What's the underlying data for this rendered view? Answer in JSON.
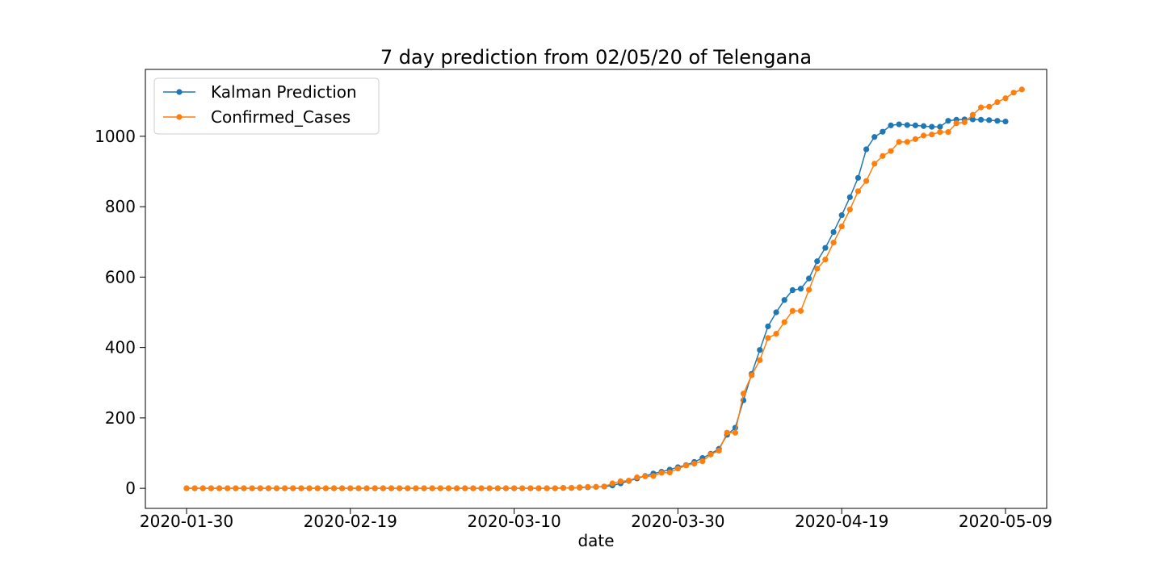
{
  "chart_data": {
    "type": "line",
    "title": "7 day prediction from 02/05/20 of Telengana",
    "xlabel": "date",
    "ylabel": "",
    "x_start": "2020-01-30",
    "x_end": "2020-05-09",
    "xticks": [
      "2020-01-30",
      "2020-02-19",
      "2020-03-10",
      "2020-03-30",
      "2020-04-19",
      "2020-05-09"
    ],
    "yticks": [
      0,
      200,
      400,
      600,
      800,
      1000
    ],
    "ylim": [
      -57,
      1190
    ],
    "grid": false,
    "legend_position": "top-left",
    "marker": "circle",
    "series": [
      {
        "name": "Kalman Prediction",
        "color": "#1f77b4",
        "values": [
          0,
          0,
          0,
          0,
          0,
          0,
          0,
          0,
          0,
          0,
          0,
          0,
          0,
          0,
          0,
          0,
          0,
          0,
          0,
          0,
          0,
          0,
          0,
          0,
          0,
          0,
          0,
          0,
          0,
          0,
          0,
          0,
          0,
          0,
          0,
          0,
          0,
          0,
          0,
          0,
          0,
          0,
          0,
          0,
          0,
          0,
          1,
          1,
          2,
          3,
          4,
          5,
          8,
          14,
          21,
          28,
          35,
          42,
          47,
          53,
          60,
          66,
          75,
          86,
          98,
          112,
          152,
          172,
          250,
          325,
          393,
          460,
          500,
          535,
          563,
          567,
          596,
          645,
          683,
          728,
          776,
          827,
          882,
          963,
          998,
          1013,
          1031,
          1034,
          1032,
          1031,
          1029,
          1027,
          1027,
          1044,
          1047,
          1048,
          1048,
          1047,
          1046,
          1044,
          1042
        ]
      },
      {
        "name": "Confirmed_Cases",
        "color": "#ff7f0e",
        "values": [
          0,
          0,
          0,
          0,
          0,
          0,
          0,
          0,
          0,
          0,
          0,
          0,
          0,
          0,
          0,
          0,
          0,
          0,
          0,
          0,
          0,
          0,
          0,
          0,
          0,
          0,
          0,
          0,
          0,
          0,
          0,
          0,
          0,
          0,
          0,
          0,
          0,
          0,
          0,
          0,
          0,
          0,
          0,
          0,
          0,
          0,
          1,
          1,
          3,
          4,
          4,
          5,
          14,
          20,
          22,
          31,
          34,
          35,
          44,
          45,
          56,
          65,
          70,
          77,
          96,
          107,
          158,
          158,
          269,
          321,
          364,
          427,
          439,
          472,
          504,
          504,
          564,
          624,
          650,
          698,
          744,
          792,
          844,
          873,
          922,
          944,
          958,
          984,
          984,
          992,
          1002,
          1005,
          1012,
          1012,
          1037,
          1040,
          1061,
          1082,
          1084,
          1097,
          1108,
          1124,
          1133
        ]
      }
    ]
  }
}
